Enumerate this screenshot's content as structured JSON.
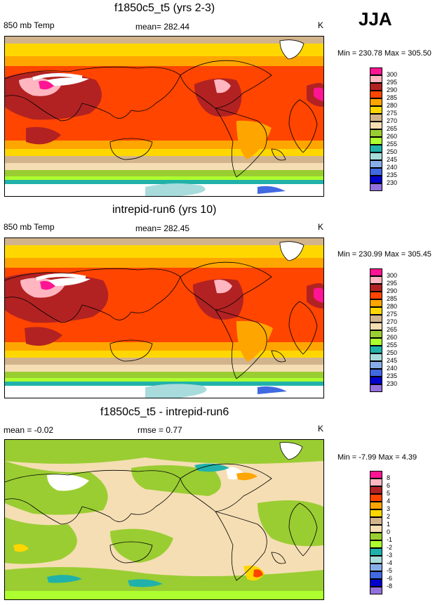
{
  "season": "JJA",
  "palette": {
    "c230": "#9370db",
    "c235": "#0000cd",
    "c240": "#4169e1",
    "c245": "#87aee8",
    "c250": "#a8dcdc",
    "c255": "#20b2aa",
    "c260": "#adff2f",
    "c265": "#9acd32",
    "c270": "#f5deb3",
    "c275": "#d2b48c",
    "c280": "#ffd700",
    "c285": "#ffa500",
    "c290": "#ff4500",
    "c295": "#b22222",
    "c300": "#ffb6c1",
    "c305": "#ff1493"
  },
  "panels": [
    {
      "title": "f1850c5_t5 (yrs 2-3)",
      "left_label": "850 mb Temp",
      "center_label": "mean= 282.44",
      "units": "K",
      "minmax": "Min = 230.78 Max = 305.50",
      "legend": [
        "230",
        "235",
        "240",
        "245",
        "250",
        "255",
        "260",
        "265",
        "270",
        "275",
        "280",
        "285",
        "290",
        "295",
        "300"
      ]
    },
    {
      "title": "intrepid-run6 (yrs 10)",
      "left_label": "850 mb Temp",
      "center_label": "mean= 282.45",
      "units": "K",
      "minmax": "Min = 230.99 Max = 305.45",
      "legend": [
        "230",
        "235",
        "240",
        "245",
        "250",
        "255",
        "260",
        "265",
        "270",
        "275",
        "280",
        "285",
        "290",
        "295",
        "300"
      ]
    },
    {
      "title": "f1850c5_t5 - intrepid-run6",
      "left_label": "mean =  -0.02",
      "center_label": "rmse =   0.77",
      "units": "K",
      "minmax": "Min =  -7.99 Max =   4.39",
      "legend": [
        "-8",
        "-6",
        "-5",
        "-4",
        "-3",
        "-2",
        "-1",
        "0",
        "1",
        "2",
        "3",
        "4",
        "5",
        "6",
        "8"
      ]
    }
  ]
}
